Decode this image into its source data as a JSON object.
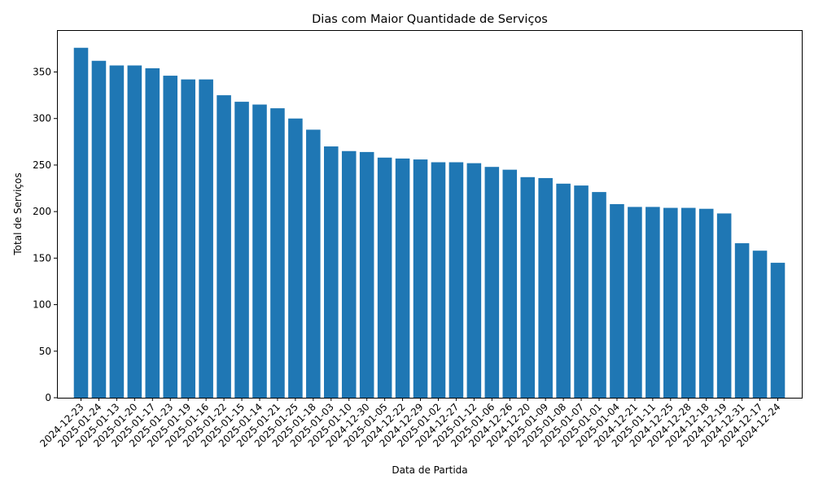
{
  "chart_data": {
    "type": "bar",
    "title": "Dias com Maior Quantidade de Serviços",
    "xlabel": "Data de Partida",
    "ylabel": "Total de Serviços",
    "ylim": [
      0,
      395
    ],
    "yticks": [
      0,
      50,
      100,
      150,
      200,
      250,
      300,
      350
    ],
    "grid": false,
    "bar_color": "#1f77b4",
    "categories": [
      "2024-12-23",
      "2025-01-24",
      "2025-01-13",
      "2025-01-20",
      "2025-01-17",
      "2025-01-23",
      "2025-01-19",
      "2025-01-16",
      "2025-01-22",
      "2025-01-15",
      "2025-01-14",
      "2025-01-21",
      "2025-01-25",
      "2025-01-18",
      "2025-01-03",
      "2025-01-10",
      "2024-12-30",
      "2025-01-05",
      "2024-12-22",
      "2024-12-29",
      "2025-01-02",
      "2024-12-27",
      "2025-01-12",
      "2025-01-06",
      "2024-12-26",
      "2024-12-20",
      "2025-01-09",
      "2025-01-08",
      "2025-01-07",
      "2025-01-01",
      "2025-01-04",
      "2024-12-21",
      "2025-01-11",
      "2024-12-25",
      "2024-12-28",
      "2024-12-18",
      "2024-12-19",
      "2024-12-31",
      "2024-12-17",
      "2024-12-24"
    ],
    "values": [
      376,
      362,
      357,
      357,
      354,
      346,
      342,
      342,
      325,
      318,
      315,
      311,
      300,
      288,
      270,
      265,
      264,
      258,
      257,
      256,
      253,
      253,
      252,
      248,
      245,
      237,
      236,
      230,
      228,
      221,
      208,
      205,
      205,
      204,
      204,
      203,
      198,
      166,
      158,
      145
    ]
  }
}
